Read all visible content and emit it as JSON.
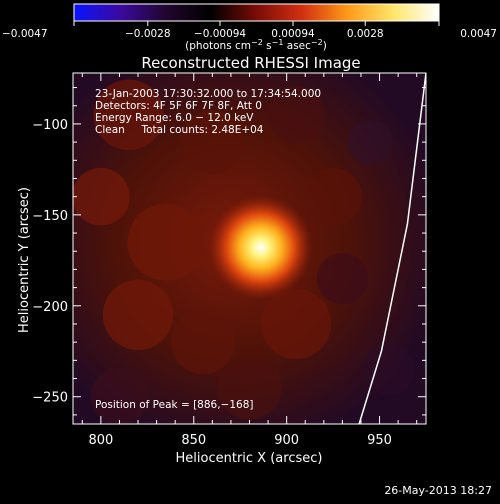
{
  "chart_data": {
    "type": "heatmap",
    "title": "Reconstructed RHESSI Image",
    "xlabel": "Heliocentric X (arcsec)",
    "ylabel": "Heliocentric Y (arcsec)",
    "xlim": [
      785,
      975
    ],
    "ylim": [
      -265,
      -72
    ],
    "x_ticks": [
      800,
      850,
      900,
      950
    ],
    "y_ticks": [
      -250,
      -200,
      -150,
      -100
    ],
    "x_tick_labels": [
      "800",
      "850",
      "900",
      "950"
    ],
    "y_tick_labels": [
      "−250",
      "−200",
      "−150",
      "−100"
    ],
    "colorbar": {
      "min": -0.0047,
      "max": 0.0047,
      "tick_values": [
        -0.0047,
        -0.0028,
        -0.00094,
        0.00094,
        0.0028,
        0.0047
      ],
      "tick_labels": [
        "−0.0047",
        "−0.0028",
        "−0.00094",
        "0.00094",
        "0.0028",
        "0.0047"
      ],
      "unit_text": "(photons cm",
      "unit_sup1": "−2",
      "unit_mid": " s",
      "unit_sup2": "−1",
      "unit_mid2": " asec",
      "unit_sup3": "−2",
      "unit_end": ")",
      "colors": [
        "#0a14ff",
        "#3a0aa0",
        "#22062e",
        "#000000",
        "#7a0c08",
        "#d23010",
        "#ff9a18",
        "#ffe66a",
        "#ffffff"
      ]
    },
    "annotations": [
      "23-Jan-2003 17:30:32.000 to 17:34:54.000",
      "Detectors: 4F 5F 6F 7F 8F, Att 0",
      "Energy Range: 6.0 − 12.0 keV",
      "Clean     Total counts: 2.48E+04"
    ],
    "peak_label": "Position of Peak = [886,−168]",
    "peak": {
      "x": 886,
      "y": -168,
      "value": 0.0047
    },
    "limb_points": [
      [
        975,
        -72
      ],
      [
        965,
        -155
      ],
      [
        951,
        -225
      ],
      [
        939,
        -265
      ]
    ],
    "background_colors": {
      "outer": "#1e0a2e",
      "glow": "#5a1408"
    }
  },
  "footer": {
    "date": "26-May-2013 18:27"
  }
}
